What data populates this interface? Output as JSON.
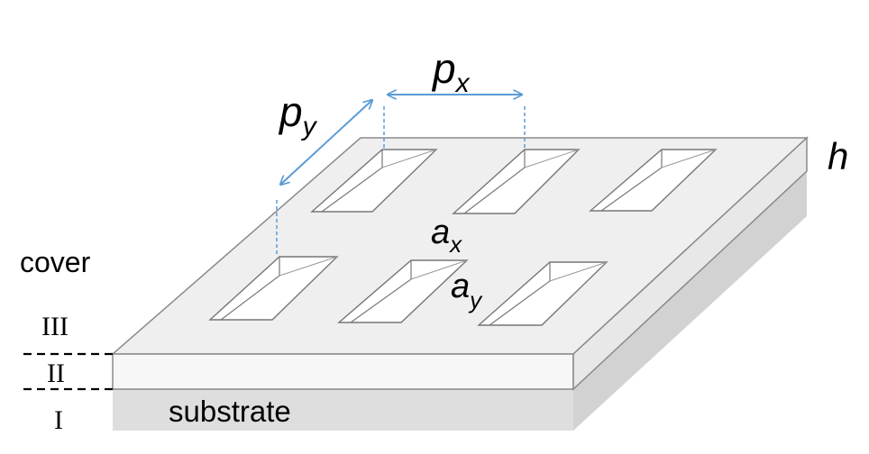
{
  "labels": {
    "px_main": "p",
    "px_sub": "x",
    "py_main": "p",
    "py_sub": "y",
    "ax_main": "a",
    "ax_sub": "x",
    "ay_main": "a",
    "ay_sub": "y",
    "h": "h",
    "cover": "cover",
    "substrate": "substrate",
    "region_3": "III",
    "region_2": "II",
    "region_1": "I"
  },
  "colors": {
    "arrow": "#5b9bd5",
    "slab_top": "#f0f0f0",
    "slab_edge": "#f6f6f6",
    "substrate_side": "#dcdcdc",
    "outline": "#8c8c8c",
    "hole_inner": "#ffffff",
    "text": "#000000"
  }
}
